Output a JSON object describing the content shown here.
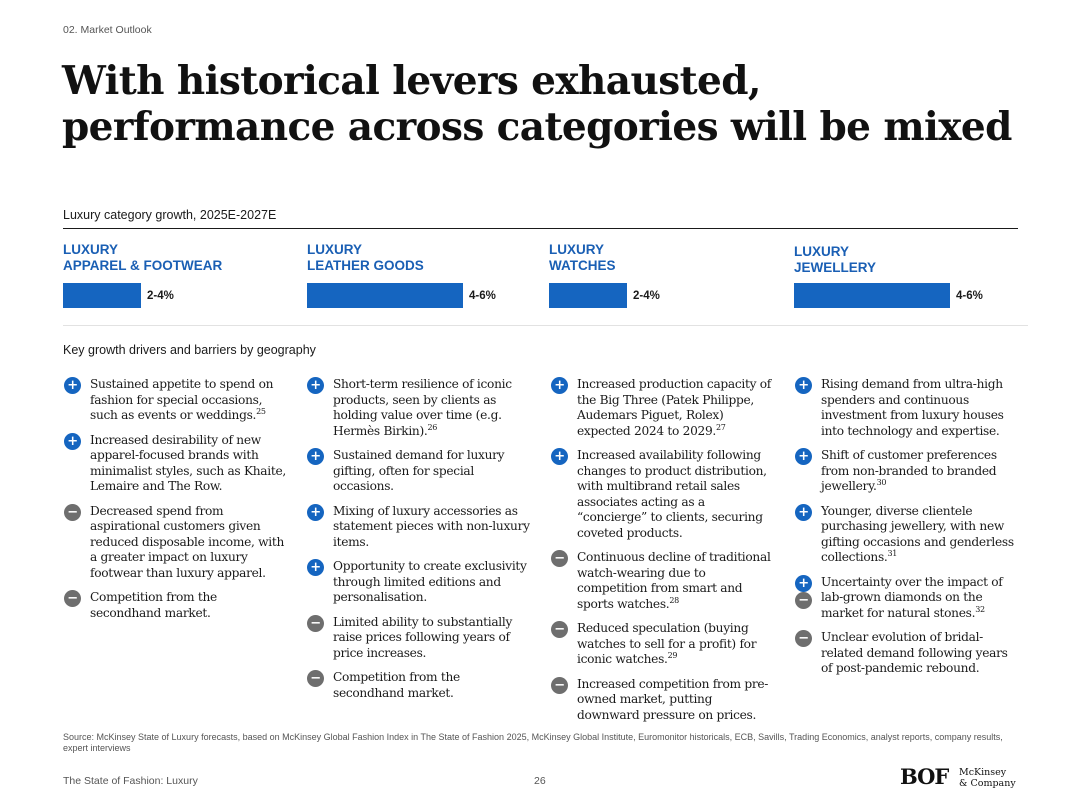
{
  "header": {
    "section": "02. Market Outlook",
    "title": "With historical levers exhausted, performance across categories will be mixed"
  },
  "chart_data": {
    "type": "bar",
    "title": "Luxury category growth, 2025E-2027E",
    "categories": [
      "LUXURY APPAREL & FOOTWEAR",
      "LUXURY LEATHER GOODS",
      "LUXURY WATCHES",
      "LUXURY JEWELLERY"
    ],
    "ranges": [
      [
        2,
        4
      ],
      [
        4,
        6
      ],
      [
        2,
        4
      ],
      [
        4,
        6
      ]
    ],
    "labels": [
      "2-4%",
      "4-6%",
      "2-4%",
      "4-6%"
    ],
    "unit": "%",
    "color": "#1565c0"
  },
  "categories": [
    {
      "line1": "LUXURY",
      "line2": "APPAREL & FOOTWEAR",
      "growth": "2-4%"
    },
    {
      "line1": "LUXURY",
      "line2": "LEATHER GOODS",
      "growth": "4-6%"
    },
    {
      "line1": "LUXURY",
      "line2": "WATCHES",
      "growth": "2-4%"
    },
    {
      "line1": "LUXURY",
      "line2": "JEWELLERY",
      "growth": "4-6%"
    }
  ],
  "drivers_title": "Key growth drivers and barriers by geography",
  "drivers": [
    [
      {
        "type": "plus",
        "text": "Sustained appetite to spend on fashion for special occasions, such as events or weddings.",
        "ref": "25"
      },
      {
        "type": "plus",
        "text": "Increased desirability of new apparel-focused brands with minimalist styles, such as Khaite, Lemaire and The Row.",
        "ref": ""
      },
      {
        "type": "minus",
        "text": "Decreased spend from aspirational customers given reduced disposable income, with a greater impact on luxury footwear than luxury apparel.",
        "ref": ""
      },
      {
        "type": "minus",
        "text": "Competition from the secondhand market.",
        "ref": ""
      }
    ],
    [
      {
        "type": "plus",
        "text": "Short-term resilience of iconic products, seen by clients as holding value over time (e.g. Hermès Birkin).",
        "ref": "26"
      },
      {
        "type": "plus",
        "text": "Sustained demand for luxury gifting, often for special occasions.",
        "ref": ""
      },
      {
        "type": "plus",
        "text": "Mixing of luxury accessories as statement pieces with non-luxury items.",
        "ref": ""
      },
      {
        "type": "plus",
        "text": "Opportunity to create exclusivity through limited editions and personalisation.",
        "ref": ""
      },
      {
        "type": "minus",
        "text": "Limited ability to substantially raise prices following years of price increases.",
        "ref": ""
      },
      {
        "type": "minus",
        "text": "Competition from the secondhand market.",
        "ref": ""
      }
    ],
    [
      {
        "type": "plus",
        "text": "Increased production capacity of the Big Three (Patek Philippe, Audemars Piguet, Rolex) expected 2024 to 2029.",
        "ref": "27"
      },
      {
        "type": "plus",
        "text": "Increased availability following changes to product distribution, with multibrand retail sales associates acting as a “concierge” to clients, securing coveted products.",
        "ref": ""
      },
      {
        "type": "minus",
        "text": "Continuous decline of traditional watch-wearing due to competition from smart and sports watches.",
        "ref": "28"
      },
      {
        "type": "minus",
        "text": "Reduced speculation (buying watches to sell for a profit) for iconic watches.",
        "ref": "29"
      },
      {
        "type": "minus",
        "text": "Increased competition from pre-owned market, putting downward pressure on prices.",
        "ref": ""
      }
    ],
    [
      {
        "type": "plus",
        "text": "Rising demand from ultra-high spenders and continuous investment from luxury houses into technology and expertise.",
        "ref": ""
      },
      {
        "type": "plus",
        "text": "Shift of customer preferences from non-branded to branded jewellery.",
        "ref": "30"
      },
      {
        "type": "plus",
        "text": "Younger, diverse clientele purchasing jewellery, with new gifting occasions and genderless collections.",
        "ref": "31"
      },
      {
        "type": "both",
        "text": "Uncertainty over the impact of lab-grown diamonds on the market for natural stones.",
        "ref": "32"
      },
      {
        "type": "minus",
        "text": "Unclear evolution of bridal-related demand following years of post-pandemic rebound.",
        "ref": ""
      }
    ]
  ],
  "source": "Source: McKinsey State of Luxury forecasts, based on McKinsey Global Fashion Index in The State of Fashion 2025, McKinsey Global Institute, Euromonitor historicals, ECB, Savills, Trading  Economics, analyst reports, company results, expert interviews",
  "footer": {
    "publication": "The State of Fashion: Luxury",
    "page": "26",
    "logo_bof": "BOF",
    "logo_mck_line1": "McKinsey",
    "logo_mck_line2": "& Company"
  }
}
